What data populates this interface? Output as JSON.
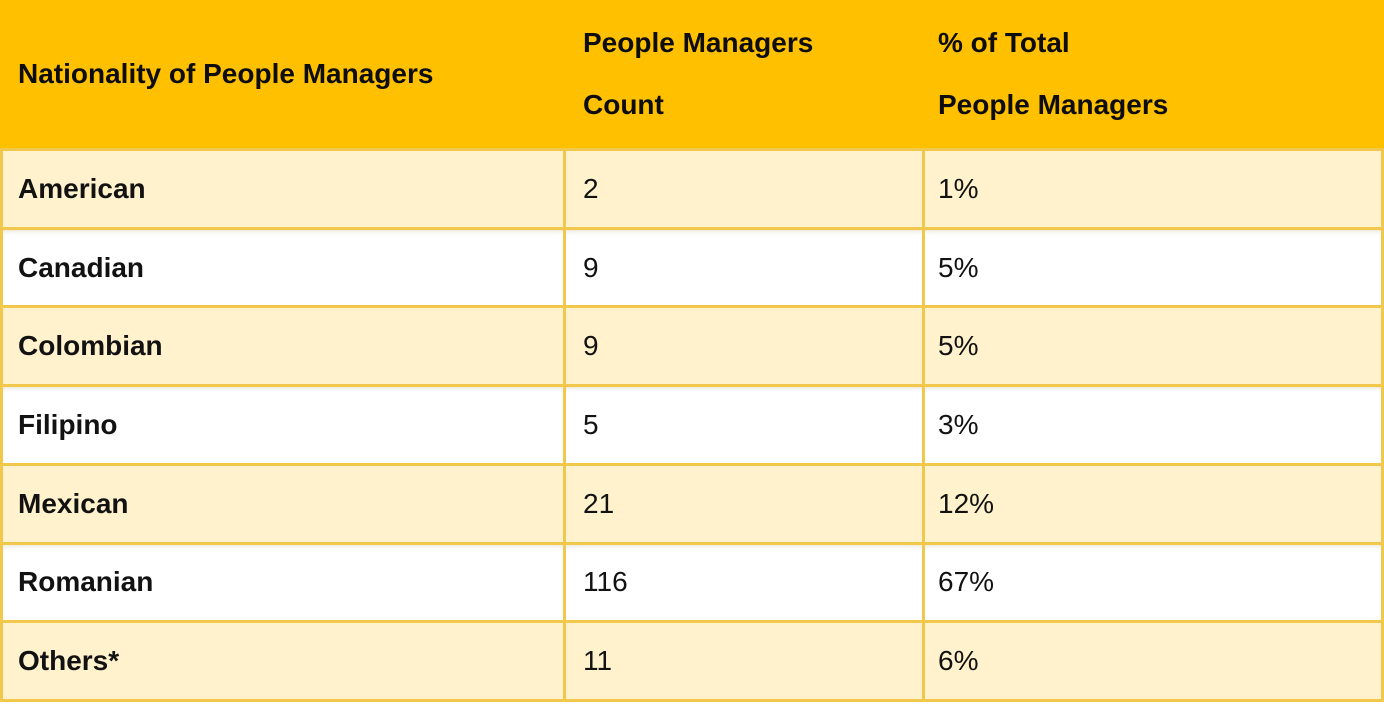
{
  "header": {
    "col1": "Nationality of People Managers",
    "col2_line1": "People Managers",
    "col2_line2": "Count",
    "col3_line1": "% of Total",
    "col3_line2": "People Managers"
  },
  "rows": [
    {
      "nationality": "American",
      "count": "2",
      "percent": "1%"
    },
    {
      "nationality": "Canadian",
      "count": "9",
      "percent": "5%"
    },
    {
      "nationality": "Colombian",
      "count": "9",
      "percent": "5%"
    },
    {
      "nationality": "Filipino",
      "count": "5",
      "percent": "3%"
    },
    {
      "nationality": "Mexican",
      "count": "21",
      "percent": "12%"
    },
    {
      "nationality": "Romanian",
      "count": "116",
      "percent": "67%"
    },
    {
      "nationality": "Others*",
      "count": "11",
      "percent": "6%"
    }
  ],
  "colors": {
    "header_bg": "#FFC000",
    "band_bg": "#FFF2CC",
    "white_bg": "#FFFFFF",
    "border": "#F2C84C",
    "text": "#121212"
  },
  "chart_data": {
    "type": "table",
    "title": "Nationality of People Managers",
    "columns": [
      "Nationality of People Managers",
      "People Managers Count",
      "% of Total People Managers"
    ],
    "categories": [
      "American",
      "Canadian",
      "Colombian",
      "Filipino",
      "Mexican",
      "Romanian",
      "Others*"
    ],
    "series": [
      {
        "name": "People Managers Count",
        "values": [
          2,
          9,
          9,
          5,
          21,
          116,
          11
        ]
      },
      {
        "name": "% of Total People Managers",
        "values": [
          1,
          5,
          5,
          3,
          12,
          67,
          6
        ]
      }
    ],
    "layout_hints": {
      "header_style": "solid gold",
      "banding": "alternating cream/white rows starting cream",
      "grid": "gold cell borders, none inside header"
    }
  }
}
